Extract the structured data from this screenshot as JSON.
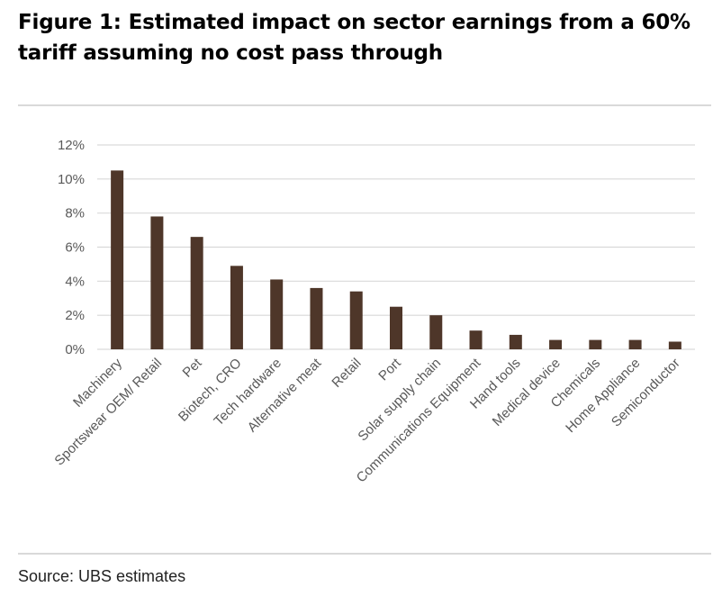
{
  "figure_title": "Figure 1: Estimated impact on sector earnings from a 60% tariff assuming no cost pass through",
  "source": "Source: UBS estimates",
  "colors": {
    "bar": "#4e3629",
    "grid": "#d9d9d9",
    "tick_text": "#595959"
  },
  "chart_data": {
    "type": "bar",
    "title": "",
    "xlabel": "",
    "ylabel": "",
    "categories": [
      "Machinery",
      "Sportswear OEM/ Retail",
      "Pet",
      "Biotech, CRO",
      "Tech hardware",
      "Alternative meat",
      "Retail",
      "Port",
      "Solar supply chain",
      "Communications Equipment",
      "Hand tools",
      "Medical device",
      "Chemicals",
      "Home Appliance",
      "Semiconductor"
    ],
    "values": [
      10.5,
      7.8,
      6.6,
      4.9,
      4.1,
      3.6,
      3.4,
      2.5,
      2.0,
      1.1,
      0.85,
      0.55,
      0.55,
      0.55,
      0.45
    ],
    "ylim": [
      0,
      12
    ],
    "yticks": [
      0,
      2,
      4,
      6,
      8,
      10,
      12
    ],
    "ytick_labels": [
      "0%",
      "2%",
      "4%",
      "6%",
      "8%",
      "10%",
      "12%"
    ],
    "grid": true,
    "legend": "none"
  }
}
